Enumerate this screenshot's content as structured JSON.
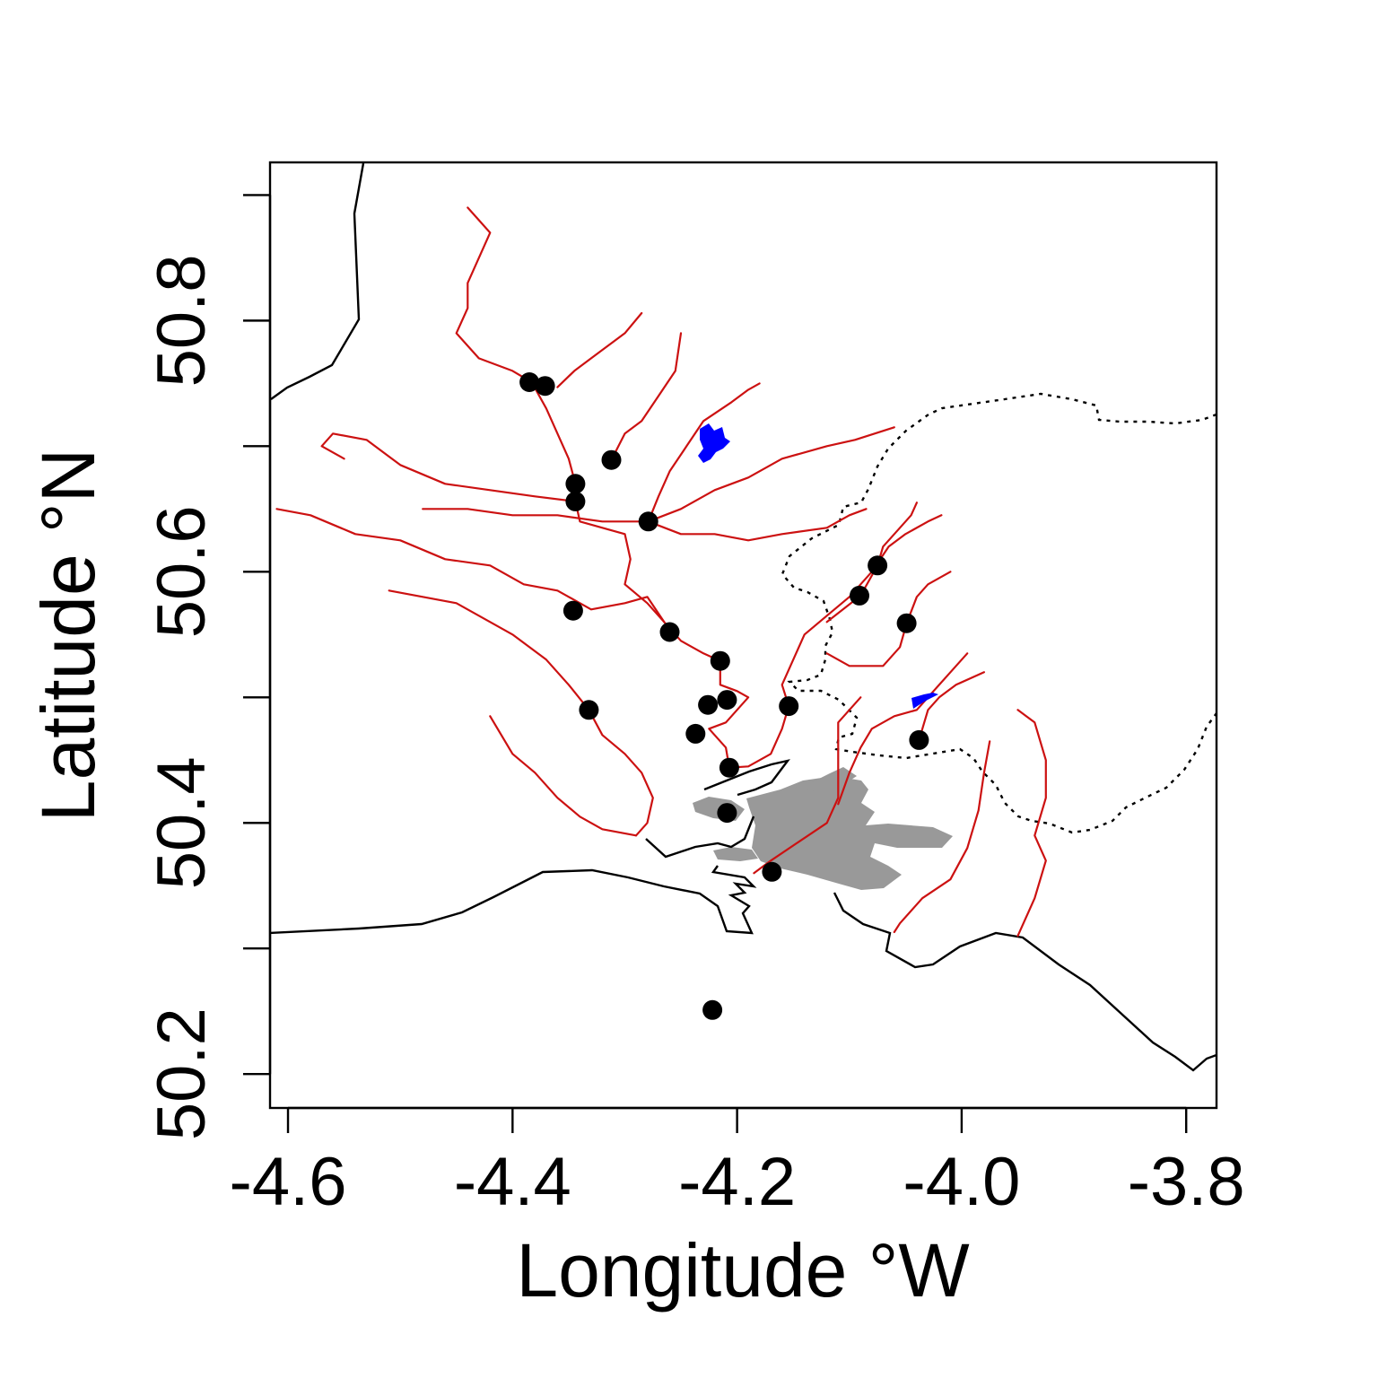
{
  "chart_data": {
    "type": "scatter",
    "title": "",
    "xlabel": "Longitude °W",
    "ylabel": "Latitude °N",
    "xlim": [
      -4.616,
      -3.773
    ],
    "ylim": [
      50.173,
      50.926
    ],
    "x_ticks": [
      {
        "value": -4.6,
        "label": "-4.6"
      },
      {
        "value": -4.4,
        "label": "-4.4"
      },
      {
        "value": -4.2,
        "label": "-4.2"
      },
      {
        "value": -4.0,
        "label": "-4.0"
      },
      {
        "value": -3.8,
        "label": "-3.8"
      }
    ],
    "y_ticks": [
      {
        "value": 50.2,
        "label": "50.2"
      },
      {
        "value": 50.3,
        "label": ""
      },
      {
        "value": 50.4,
        "label": "50.4"
      },
      {
        "value": 50.5,
        "label": ""
      },
      {
        "value": 50.6,
        "label": "50.6"
      },
      {
        "value": 50.7,
        "label": ""
      },
      {
        "value": 50.8,
        "label": "50.8"
      },
      {
        "value": 50.9,
        "label": ""
      }
    ],
    "grid": false,
    "legend": "none",
    "colors": {
      "sites": "#000000",
      "rivers": "#cc1111",
      "reservoirs": "#0000ff",
      "urban_area": "#999999",
      "coastline": "#000000",
      "boundary": "#000000"
    },
    "points": [
      {
        "x": -4.385,
        "y": 50.751
      },
      {
        "x": -4.371,
        "y": 50.748
      },
      {
        "x": -4.312,
        "y": 50.689
      },
      {
        "x": -4.344,
        "y": 50.67
      },
      {
        "x": -4.344,
        "y": 50.656
      },
      {
        "x": -4.279,
        "y": 50.64
      },
      {
        "x": -4.346,
        "y": 50.569
      },
      {
        "x": -4.26,
        "y": 50.552
      },
      {
        "x": -4.215,
        "y": 50.529
      },
      {
        "x": -4.226,
        "y": 50.494
      },
      {
        "x": -4.209,
        "y": 50.498
      },
      {
        "x": -4.332,
        "y": 50.49
      },
      {
        "x": -4.154,
        "y": 50.493
      },
      {
        "x": -4.237,
        "y": 50.471
      },
      {
        "x": -4.207,
        "y": 50.444
      },
      {
        "x": -4.209,
        "y": 50.408
      },
      {
        "x": -4.169,
        "y": 50.361
      },
      {
        "x": -4.091,
        "y": 50.581
      },
      {
        "x": -4.075,
        "y": 50.605
      },
      {
        "x": -4.049,
        "y": 50.559
      },
      {
        "x": -4.038,
        "y": 50.466
      },
      {
        "x": -4.222,
        "y": 50.251
      }
    ],
    "rivers": [
      [
        [
          -4.44,
          50.89
        ],
        [
          -4.43,
          50.88
        ],
        [
          -4.42,
          50.87
        ],
        [
          -4.43,
          50.85
        ],
        [
          -4.44,
          50.83
        ],
        [
          -4.44,
          50.81
        ],
        [
          -4.45,
          50.79
        ],
        [
          -4.43,
          50.77
        ],
        [
          -4.4,
          50.76
        ],
        [
          -4.383,
          50.751
        ]
      ],
      [
        [
          -4.383,
          50.751
        ],
        [
          -4.37,
          50.73
        ],
        [
          -4.36,
          50.71
        ],
        [
          -4.35,
          50.69
        ],
        [
          -4.344,
          50.67
        ],
        [
          -4.344,
          50.656
        ],
        [
          -4.34,
          50.64
        ],
        [
          -4.32,
          50.635
        ],
        [
          -4.3,
          50.63
        ],
        [
          -4.295,
          50.61
        ],
        [
          -4.3,
          50.59
        ],
        [
          -4.28,
          50.575
        ],
        [
          -4.265,
          50.56
        ],
        [
          -4.25,
          50.545
        ],
        [
          -4.23,
          50.535
        ],
        [
          -4.215,
          50.529
        ]
      ],
      [
        [
          -4.215,
          50.529
        ],
        [
          -4.215,
          50.51
        ],
        [
          -4.2,
          50.505
        ],
        [
          -4.19,
          50.5
        ],
        [
          -4.2,
          50.49
        ],
        [
          -4.21,
          50.48
        ],
        [
          -4.225,
          50.475
        ],
        [
          -4.21,
          50.46
        ],
        [
          -4.207,
          50.444
        ]
      ],
      [
        [
          -4.36,
          50.747
        ],
        [
          -4.345,
          50.76
        ],
        [
          -4.33,
          50.77
        ],
        [
          -4.315,
          50.78
        ],
        [
          -4.3,
          50.79
        ],
        [
          -4.285,
          50.806
        ]
      ],
      [
        [
          -4.312,
          50.689
        ],
        [
          -4.3,
          50.71
        ],
        [
          -4.285,
          50.72
        ],
        [
          -4.27,
          50.74
        ],
        [
          -4.255,
          50.76
        ],
        [
          -4.25,
          50.79
        ]
      ],
      [
        [
          -4.279,
          50.64
        ],
        [
          -4.27,
          50.66
        ],
        [
          -4.26,
          50.68
        ],
        [
          -4.245,
          50.7
        ],
        [
          -4.23,
          50.72
        ],
        [
          -4.205,
          50.735
        ],
        [
          -4.19,
          50.745
        ],
        [
          -4.18,
          50.75
        ]
      ],
      [
        [
          -4.279,
          50.64
        ],
        [
          -4.25,
          50.65
        ],
        [
          -4.22,
          50.665
        ],
        [
          -4.19,
          50.675
        ],
        [
          -4.16,
          50.69
        ],
        [
          -4.12,
          50.7
        ],
        [
          -4.095,
          50.705
        ],
        [
          -4.06,
          50.715
        ]
      ],
      [
        [
          -4.55,
          50.69
        ],
        [
          -4.57,
          50.7
        ],
        [
          -4.56,
          50.71
        ],
        [
          -4.53,
          50.705
        ],
        [
          -4.5,
          50.685
        ],
        [
          -4.46,
          50.67
        ],
        [
          -4.42,
          50.665
        ],
        [
          -4.38,
          50.66
        ],
        [
          -4.344,
          50.656
        ]
      ],
      [
        [
          -4.48,
          50.65
        ],
        [
          -4.44,
          50.65
        ],
        [
          -4.4,
          50.645
        ],
        [
          -4.36,
          50.645
        ],
        [
          -4.32,
          50.64
        ],
        [
          -4.279,
          50.64
        ],
        [
          -4.25,
          50.63
        ],
        [
          -4.22,
          50.63
        ],
        [
          -4.19,
          50.625
        ],
        [
          -4.16,
          50.63
        ],
        [
          -4.12,
          50.635
        ],
        [
          -4.1,
          50.645
        ],
        [
          -4.085,
          50.65
        ]
      ],
      [
        [
          -4.61,
          50.65
        ],
        [
          -4.58,
          50.645
        ],
        [
          -4.54,
          50.63
        ],
        [
          -4.5,
          50.625
        ],
        [
          -4.46,
          50.61
        ],
        [
          -4.42,
          50.605
        ],
        [
          -4.39,
          50.59
        ],
        [
          -4.36,
          50.585
        ],
        [
          -4.33,
          50.57
        ],
        [
          -4.3,
          50.575
        ],
        [
          -4.28,
          50.58
        ],
        [
          -4.265,
          50.56
        ]
      ],
      [
        [
          -4.51,
          50.585
        ],
        [
          -4.48,
          50.58
        ],
        [
          -4.45,
          50.575
        ],
        [
          -4.42,
          50.56
        ],
        [
          -4.4,
          50.55
        ],
        [
          -4.37,
          50.53
        ],
        [
          -4.35,
          50.51
        ],
        [
          -4.332,
          50.49
        ],
        [
          -4.32,
          50.47
        ],
        [
          -4.3,
          50.455
        ],
        [
          -4.285,
          50.44
        ],
        [
          -4.275,
          50.42
        ],
        [
          -4.28,
          50.4
        ],
        [
          -4.29,
          50.39
        ]
      ],
      [
        [
          -4.42,
          50.485
        ],
        [
          -4.41,
          50.47
        ],
        [
          -4.4,
          50.455
        ],
        [
          -4.38,
          50.44
        ],
        [
          -4.36,
          50.42
        ],
        [
          -4.34,
          50.405
        ],
        [
          -4.32,
          50.395
        ],
        [
          -4.29,
          50.39
        ]
      ],
      [
        [
          -4.154,
          50.493
        ],
        [
          -4.16,
          50.51
        ],
        [
          -4.15,
          50.53
        ],
        [
          -4.14,
          50.55
        ],
        [
          -4.12,
          50.565
        ],
        [
          -4.1,
          50.58
        ],
        [
          -4.08,
          50.6
        ],
        [
          -4.065,
          50.62
        ],
        [
          -4.05,
          50.63
        ],
        [
          -4.03,
          50.64
        ],
        [
          -4.018,
          50.645
        ]
      ],
      [
        [
          -4.154,
          50.493
        ],
        [
          -4.16,
          50.475
        ],
        [
          -4.17,
          50.455
        ],
        [
          -4.19,
          50.445
        ],
        [
          -4.207,
          50.444
        ]
      ],
      [
        [
          -4.12,
          50.56
        ],
        [
          -4.09,
          50.581
        ],
        [
          -4.075,
          50.605
        ],
        [
          -4.07,
          50.62
        ],
        [
          -4.055,
          50.635
        ],
        [
          -4.045,
          50.645
        ],
        [
          -4.04,
          50.655
        ]
      ],
      [
        [
          -4.12,
          50.535
        ],
        [
          -4.1,
          50.525
        ],
        [
          -4.07,
          50.525
        ],
        [
          -4.055,
          50.54
        ],
        [
          -4.049,
          50.559
        ],
        [
          -4.04,
          50.58
        ],
        [
          -4.03,
          50.59
        ],
        [
          -4.01,
          50.6
        ]
      ],
      [
        [
          -4.11,
          50.415
        ],
        [
          -4.1,
          50.44
        ],
        [
          -4.09,
          50.46
        ],
        [
          -4.08,
          50.475
        ],
        [
          -4.06,
          50.485
        ],
        [
          -4.04,
          50.49
        ],
        [
          -4.025,
          50.505
        ],
        [
          -4.01,
          50.52
        ],
        [
          -3.995,
          50.535
        ]
      ],
      [
        [
          -4.038,
          50.466
        ],
        [
          -4.03,
          50.49
        ],
        [
          -4.02,
          50.5
        ],
        [
          -4.005,
          50.51
        ],
        [
          -3.98,
          50.52
        ]
      ],
      [
        [
          -3.95,
          50.49
        ],
        [
          -3.935,
          50.48
        ],
        [
          -3.925,
          50.45
        ],
        [
          -3.925,
          50.42
        ],
        [
          -3.935,
          50.39
        ],
        [
          -3.925,
          50.37
        ],
        [
          -3.935,
          50.34
        ],
        [
          -3.95,
          50.31
        ]
      ],
      [
        [
          -3.975,
          50.465
        ],
        [
          -3.98,
          50.44
        ],
        [
          -3.985,
          50.41
        ],
        [
          -3.995,
          50.38
        ],
        [
          -4.01,
          50.355
        ],
        [
          -4.035,
          50.34
        ],
        [
          -4.055,
          50.32
        ],
        [
          -4.06,
          50.313
        ]
      ],
      [
        [
          -4.09,
          50.5
        ],
        [
          -4.11,
          50.48
        ],
        [
          -4.11,
          50.45
        ],
        [
          -4.11,
          50.42
        ],
        [
          -4.12,
          50.4
        ],
        [
          -4.145,
          50.385
        ],
        [
          -4.17,
          50.37
        ],
        [
          -4.185,
          50.36
        ]
      ]
    ]
  }
}
